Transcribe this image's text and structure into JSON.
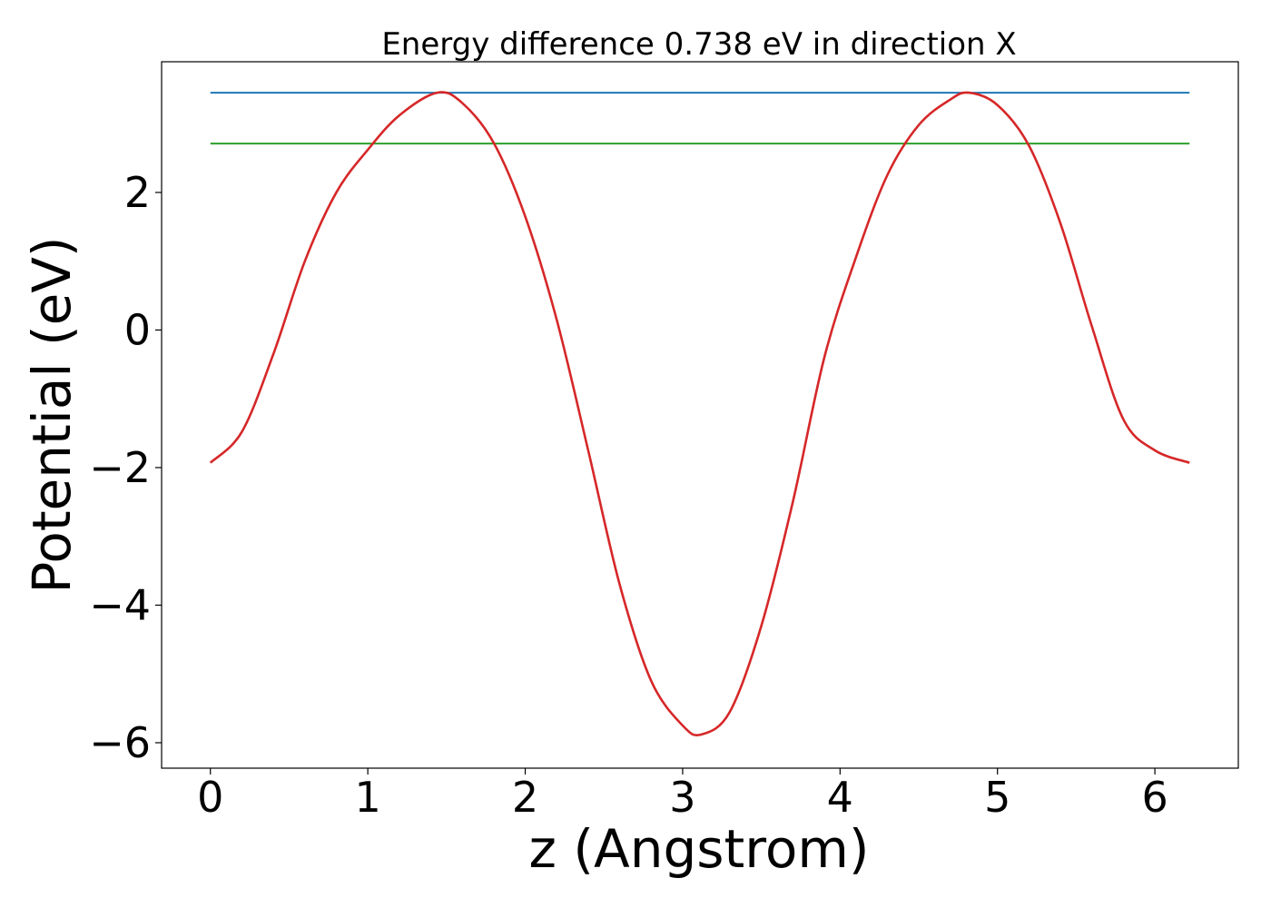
{
  "chart_data": {
    "type": "line",
    "title": "Energy difference 0.738 eV in direction X",
    "xlabel": "z (Angstrom)",
    "ylabel": "Potential (eV)",
    "xlim": [
      -0.31,
      6.53
    ],
    "ylim": [
      -6.37,
      3.9
    ],
    "xticks": [
      0,
      1,
      2,
      3,
      4,
      5,
      6
    ],
    "xtick_labels": [
      "0",
      "1",
      "2",
      "3",
      "4",
      "5",
      "6"
    ],
    "yticks": [
      -6,
      -4,
      -2,
      0,
      2
    ],
    "ytick_labels": [
      "−6",
      "−4",
      "−2",
      "0",
      "2"
    ],
    "grid": false,
    "series": [
      {
        "color": "#d62728",
        "x": [
          0.0,
          0.2,
          0.4,
          0.6,
          0.8,
          1.0,
          1.2,
          1.44,
          1.6,
          1.8,
          2.0,
          2.2,
          2.4,
          2.6,
          2.8,
          3.0,
          3.12,
          3.3,
          3.5,
          3.7,
          3.9,
          4.1,
          4.3,
          4.5,
          4.7,
          4.82,
          5.0,
          5.2,
          5.4,
          5.6,
          5.8,
          6.0,
          6.22
        ],
        "y": [
          -1.93,
          -1.48,
          -0.35,
          1.0,
          2.0,
          2.62,
          3.12,
          3.45,
          3.3,
          2.72,
          1.65,
          0.15,
          -1.75,
          -3.7,
          -5.1,
          -5.75,
          -5.88,
          -5.55,
          -4.3,
          -2.5,
          -0.4,
          1.05,
          2.25,
          2.98,
          3.35,
          3.45,
          3.27,
          2.68,
          1.55,
          0.05,
          -1.3,
          -1.75,
          -1.93
        ]
      },
      {
        "color": "#1f77b4",
        "x": [
          0.0,
          6.22
        ],
        "y": [
          3.45,
          3.45
        ]
      },
      {
        "color": "#2ca02c",
        "x": [
          0.0,
          6.22
        ],
        "y": [
          2.71,
          2.71
        ]
      }
    ]
  }
}
